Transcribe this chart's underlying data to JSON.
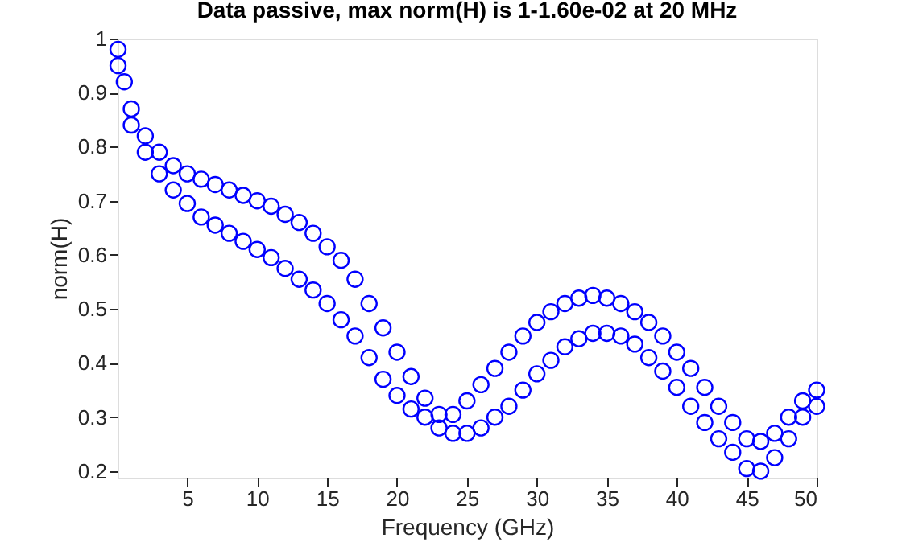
{
  "chart_data": {
    "type": "scatter",
    "title": "Data passive, max norm(H) is 1-1.60e-02 at 20 MHz",
    "xlabel": "Frequency (GHz)",
    "ylabel": "norm(H)",
    "marker": "circle",
    "grid": false,
    "xlim": [
      0.02,
      50
    ],
    "ylim": [
      0.188,
      1
    ],
    "xticks": [
      5,
      10,
      15,
      20,
      25,
      30,
      35,
      40,
      45,
      50
    ],
    "yticks": [
      0.2,
      0.3,
      0.4,
      0.5,
      0.6,
      0.7,
      0.8,
      0.9,
      1
    ],
    "series": [
      {
        "color": "#0000ff",
        "x": [
          0.05,
          0.5,
          1,
          2,
          3,
          4,
          5,
          6,
          7,
          8,
          9,
          10,
          11,
          12,
          13,
          14,
          15,
          16,
          17,
          18,
          19,
          20,
          21,
          22,
          23,
          24,
          25,
          26,
          27,
          28,
          29,
          30,
          31,
          32,
          33,
          34,
          35,
          36,
          37,
          38,
          39,
          40,
          41,
          42,
          43,
          44,
          45,
          46,
          47,
          48,
          49,
          50
        ],
        "values": [
          0.98,
          0.92,
          0.87,
          0.82,
          0.79,
          0.765,
          0.75,
          0.74,
          0.73,
          0.72,
          0.71,
          0.7,
          0.69,
          0.675,
          0.66,
          0.64,
          0.615,
          0.59,
          0.555,
          0.51,
          0.465,
          0.42,
          0.375,
          0.335,
          0.305,
          0.305,
          0.33,
          0.36,
          0.39,
          0.42,
          0.45,
          0.475,
          0.495,
          0.51,
          0.52,
          0.525,
          0.52,
          0.51,
          0.495,
          0.475,
          0.45,
          0.42,
          0.39,
          0.355,
          0.32,
          0.29,
          0.26,
          0.255,
          0.27,
          0.3,
          0.33,
          0.35
        ]
      },
      {
        "color": "#0000ff",
        "x": [
          0.05,
          1,
          2,
          3,
          4,
          5,
          6,
          7,
          8,
          9,
          10,
          11,
          12,
          13,
          14,
          15,
          16,
          17,
          18,
          19,
          20,
          21,
          22,
          23,
          24,
          25,
          26,
          27,
          28,
          29,
          30,
          31,
          32,
          33,
          34,
          35,
          36,
          37,
          38,
          39,
          40,
          41,
          42,
          43,
          44,
          45,
          46,
          47,
          48,
          49,
          50
        ],
        "values": [
          0.95,
          0.84,
          0.79,
          0.75,
          0.72,
          0.695,
          0.67,
          0.655,
          0.64,
          0.625,
          0.61,
          0.595,
          0.575,
          0.555,
          0.535,
          0.51,
          0.48,
          0.45,
          0.41,
          0.37,
          0.34,
          0.315,
          0.3,
          0.28,
          0.27,
          0.27,
          0.28,
          0.3,
          0.32,
          0.35,
          0.38,
          0.405,
          0.43,
          0.445,
          0.455,
          0.455,
          0.45,
          0.435,
          0.41,
          0.385,
          0.355,
          0.32,
          0.29,
          0.26,
          0.235,
          0.205,
          0.2,
          0.225,
          0.26,
          0.3,
          0.32
        ]
      }
    ]
  }
}
